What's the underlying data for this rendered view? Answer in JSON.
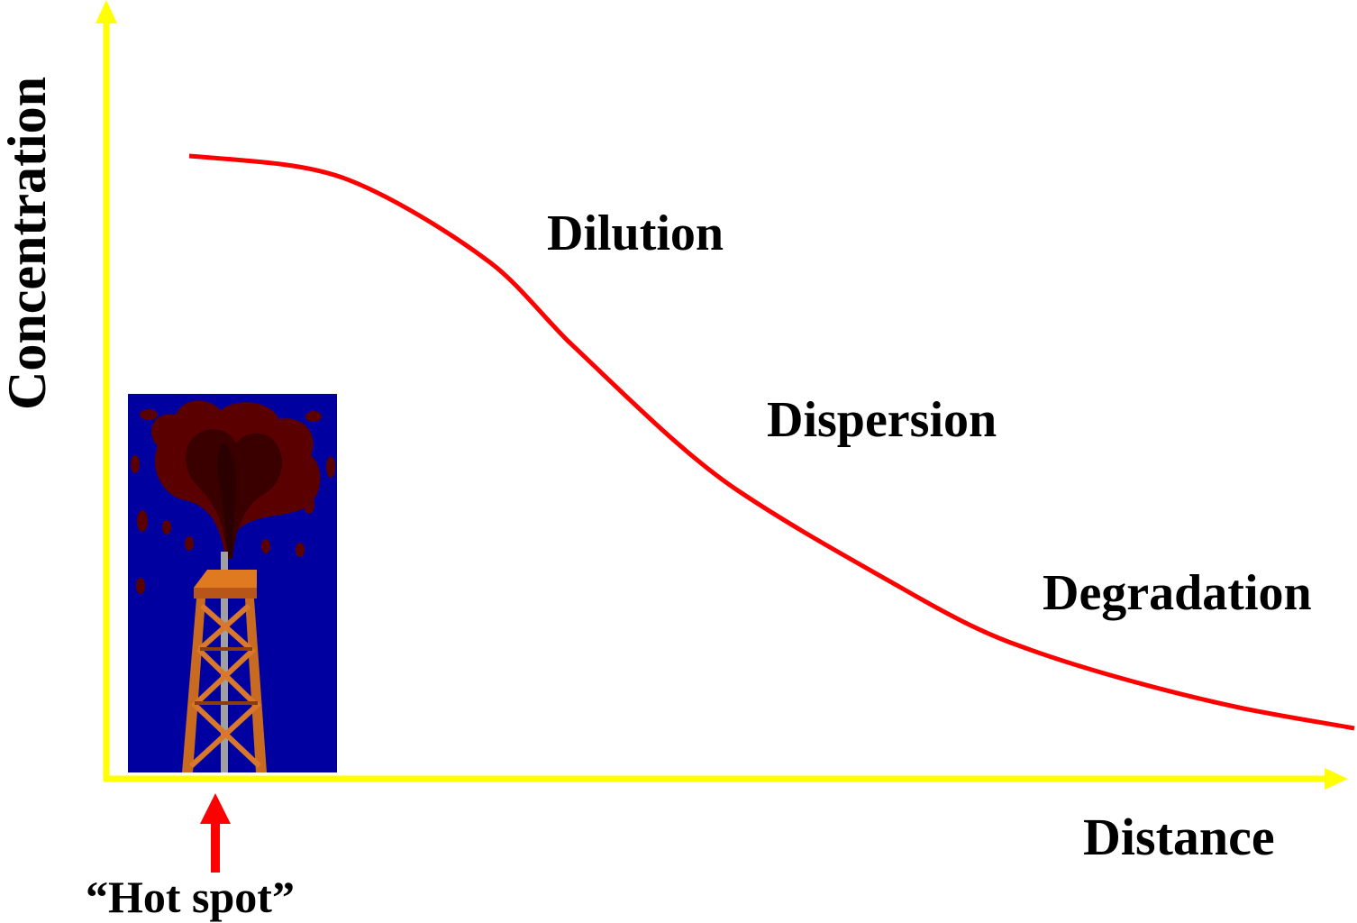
{
  "axes": {
    "y_label": "Concentration",
    "x_label": "Distance",
    "axis_color": "#ffff00"
  },
  "curve": {
    "color": "#ff0000",
    "shape": "sigmoid decline from high near source to low at distance"
  },
  "zones": {
    "dilution": "Dilution",
    "dispersion": "Dispersion",
    "degradation": "Degradation"
  },
  "source": {
    "icon": "oil-well-gusher-icon",
    "background_color": "#0000a0",
    "marker_color": "#ff0000",
    "marker_label": "“Hot spot”"
  }
}
